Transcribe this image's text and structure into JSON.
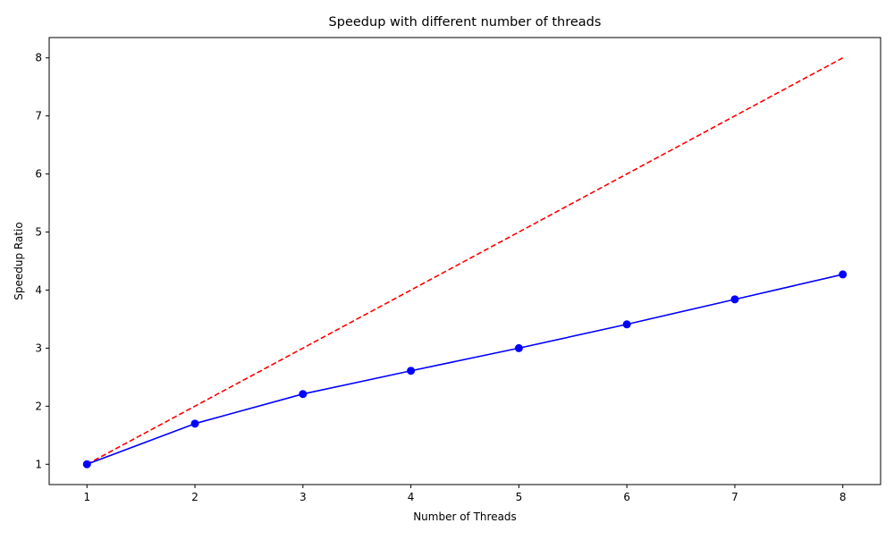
{
  "chart_data": {
    "type": "line",
    "title": "Speedup with different number of threads",
    "xlabel": "Number of Threads",
    "ylabel": "Speedup Ratio",
    "x": [
      1,
      2,
      3,
      4,
      5,
      6,
      7,
      8
    ],
    "xticks": [
      "1",
      "2",
      "3",
      "4",
      "5",
      "6",
      "7",
      "8"
    ],
    "yticks": [
      "1",
      "2",
      "3",
      "4",
      "5",
      "6",
      "7",
      "8"
    ],
    "xlim": [
      0.65,
      8.35
    ],
    "ylim": [
      0.65,
      8.35
    ],
    "grid": false,
    "series": [
      {
        "values": [
          1.0,
          1.7,
          2.21,
          2.61,
          3.0,
          3.41,
          3.84,
          4.27
        ],
        "color": "#0000ff",
        "line_style": "solid",
        "marker": "circle"
      },
      {
        "values": [
          1,
          2,
          3,
          4,
          5,
          6,
          7,
          8
        ],
        "color": "#ff0000",
        "line_style": "dashed",
        "marker": "none"
      }
    ]
  }
}
